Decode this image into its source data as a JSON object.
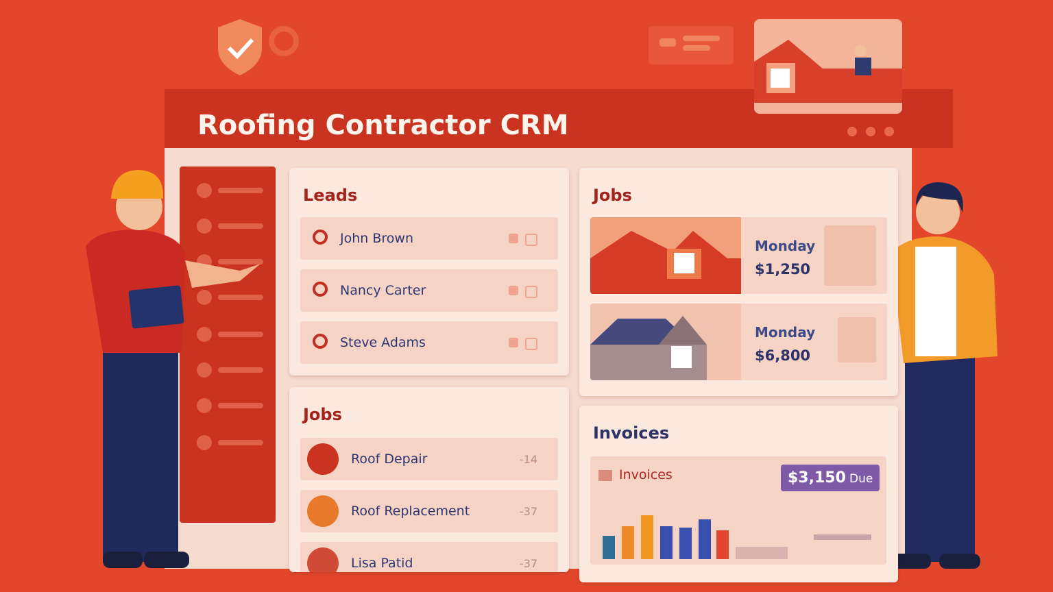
{
  "header": {
    "title": "Roofing Contractor CRM"
  },
  "leads": {
    "title": "Leads",
    "items": [
      {
        "name": "John Brown"
      },
      {
        "name": "Nancy Carter"
      },
      {
        "name": "Steve Adams"
      }
    ]
  },
  "jobs_list": {
    "title": "Jobs",
    "items": [
      {
        "name": "Roof Depair",
        "count": "-14"
      },
      {
        "name": "Roof Replacement",
        "count": "-37"
      },
      {
        "name": "Lisa Patid",
        "count": "-37"
      }
    ]
  },
  "jobs_schedule": {
    "title": "Jobs",
    "items": [
      {
        "day": "Monday",
        "amount": "$1,250"
      },
      {
        "day": "Monday",
        "amount": "$6,800"
      }
    ]
  },
  "invoices": {
    "title": "Invoices",
    "subtitle": "Invoices",
    "amount": "$3,150",
    "status": "Due"
  }
}
